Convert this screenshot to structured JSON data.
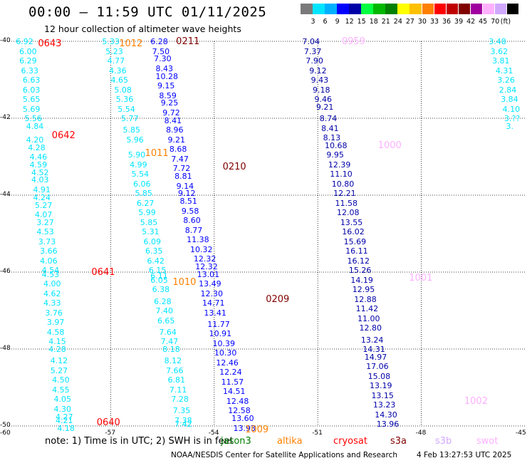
{
  "title": "00:00 — 11:59 UTC 01/11/2025",
  "subtitle": "12 hour collection of altimeter wave heights",
  "legend": {
    "unit": "(ft)",
    "colors": [
      "#7a7a7a",
      "#00e5ff",
      "#00b0ff",
      "#0000ff",
      "#0000a8",
      "#00ff40",
      "#00b800",
      "#008000",
      "#ffff00",
      "#ffc000",
      "#ff8000",
      "#ff0000",
      "#c00000",
      "#800000",
      "#a000a0",
      "#ffb0ff",
      "#d0a8ff",
      "#000000"
    ],
    "labels": [
      "3",
      "6",
      "9",
      "12",
      "15",
      "18",
      "21",
      "24",
      "27",
      "30",
      "33",
      "36",
      "39",
      "42",
      "45",
      "70"
    ]
  },
  "axes": {
    "x_ticks": [
      "-57",
      "-54",
      "-51",
      "-48"
    ],
    "x_left": "-60",
    "x_right": "-45",
    "y_ticks": [
      "-40",
      "-42",
      "-44",
      "-46",
      "-48",
      "-50"
    ]
  },
  "tracks": [
    {
      "color": "#00e5ff",
      "points": [
        [
          "6.92",
          -59.5,
          -40.0
        ],
        [
          "6.00",
          -59.4,
          -40.25
        ],
        [
          "6.29",
          -59.4,
          -40.5
        ],
        [
          "6.33",
          -59.35,
          -40.75
        ],
        [
          "6.63",
          -59.3,
          -41.0
        ],
        [
          "6.03",
          -59.3,
          -41.25
        ],
        [
          "5.65",
          -59.3,
          -41.5
        ],
        [
          "5.69",
          -59.3,
          -41.75
        ],
        [
          "5.56",
          -59.25,
          -42.0
        ],
        [
          "4.84",
          -59.2,
          -42.2
        ],
        [
          "4.20",
          -59.2,
          -42.55
        ],
        [
          "4.28",
          -59.15,
          -42.75
        ],
        [
          "4.46",
          -59.1,
          -43.0
        ],
        [
          "4.59",
          -59.1,
          -43.2
        ],
        [
          "4.52",
          -59.05,
          -43.4
        ],
        [
          "4.03",
          -59.05,
          -43.6
        ],
        [
          "4.91",
          -59.0,
          -43.85
        ],
        [
          "4.24",
          -59.0,
          -44.05
        ],
        [
          "5.27",
          -58.95,
          -44.25
        ],
        [
          "4.07",
          -58.95,
          -44.5
        ],
        [
          "3.27",
          -58.9,
          -44.7
        ],
        [
          "4.53",
          -58.9,
          -44.95
        ],
        [
          "3.73",
          -58.85,
          -45.2
        ],
        [
          "3.66",
          -58.8,
          -45.45
        ],
        [
          "4.06",
          -58.8,
          -45.7
        ],
        [
          "4.54",
          -58.75,
          -45.95
        ],
        [
          "4.53",
          -58.75,
          -46.05
        ],
        [
          "4.00",
          -58.7,
          -46.3
        ],
        [
          "4.62",
          -58.7,
          -46.55
        ],
        [
          "4.33",
          -58.7,
          -46.8
        ],
        [
          "3.76",
          -58.65,
          -47.05
        ],
        [
          "3.97",
          -58.6,
          -47.3
        ],
        [
          "4.58",
          -58.6,
          -47.55
        ],
        [
          "4.15",
          -58.55,
          -47.8
        ],
        [
          "4.28",
          -58.55,
          -48.0
        ],
        [
          "4.12",
          -58.5,
          -48.3
        ],
        [
          "5.27",
          -58.5,
          -48.55
        ],
        [
          "4.50",
          -58.45,
          -48.8
        ],
        [
          "4.55",
          -58.45,
          -49.05
        ],
        [
          "4.05",
          -58.4,
          -49.3
        ],
        [
          "4.30",
          -58.4,
          -49.55
        ],
        [
          "4.27",
          -58.35,
          -49.75
        ],
        [
          "4.21",
          -58.35,
          -49.85
        ],
        [
          "4.18",
          -58.3,
          -50.05
        ]
      ]
    },
    {
      "color": "#00e5ff",
      "points": [
        [
          "5.33",
          -57.0,
          -40.0
        ],
        [
          "5.23",
          -56.9,
          -40.25
        ],
        [
          "4.77",
          -56.85,
          -40.5
        ],
        [
          "4.36",
          -56.8,
          -40.75
        ],
        [
          "4.65",
          -56.75,
          -41.0
        ],
        [
          "5.08",
          -56.65,
          -41.25
        ],
        [
          "5.36",
          -56.6,
          -41.5
        ],
        [
          "5.54",
          -56.55,
          -41.75
        ],
        [
          "5.77",
          -56.45,
          -42.0
        ],
        [
          "5.85",
          -56.4,
          -42.3
        ],
        [
          "5.96",
          -56.3,
          -42.55
        ],
        [
          "5.90",
          -56.25,
          -42.95
        ],
        [
          "4.99",
          -56.2,
          -43.2
        ],
        [
          "5.54",
          -56.15,
          -43.45
        ],
        [
          "6.06",
          -56.1,
          -43.7
        ],
        [
          "5.85",
          -56.05,
          -43.95
        ],
        [
          "6.27",
          -56.0,
          -44.2
        ],
        [
          "5.99",
          -55.95,
          -44.45
        ],
        [
          "5.85",
          -55.9,
          -44.7
        ],
        [
          "5.31",
          -55.85,
          -44.95
        ],
        [
          "6.09",
          -55.8,
          -45.2
        ],
        [
          "6.35",
          -55.75,
          -45.45
        ],
        [
          "6.42",
          -55.7,
          -45.7
        ],
        [
          "6.15",
          -55.65,
          -45.95
        ],
        [
          "6.11",
          -55.6,
          -46.1
        ],
        [
          "6.05",
          -55.6,
          -46.2
        ],
        [
          "6.38",
          -55.55,
          -46.45
        ],
        [
          "6.28",
          -55.5,
          -46.75
        ],
        [
          "7.40",
          -55.45,
          -47.0
        ],
        [
          "6.65",
          -55.4,
          -47.25
        ],
        [
          "7.64",
          -55.35,
          -47.55
        ],
        [
          "7.47",
          -55.3,
          -47.8
        ],
        [
          "8.18",
          -55.25,
          -48.0
        ],
        [
          "8.12",
          -55.2,
          -48.3
        ],
        [
          "7.66",
          -55.15,
          -48.55
        ],
        [
          "6.81",
          -55.1,
          -48.8
        ],
        [
          "7.11",
          -55.05,
          -49.05
        ],
        [
          "7.28",
          -55.0,
          -49.3
        ],
        [
          "7.35",
          -54.95,
          -49.6
        ],
        [
          "7.38",
          -54.9,
          -49.85
        ],
        [
          "7.42",
          -54.9,
          -49.95
        ]
      ]
    },
    {
      "color": "#0000ff",
      "points": [
        [
          "6.28",
          -55.6,
          -40.0
        ],
        [
          "7.50",
          -55.55,
          -40.25
        ],
        [
          "7.30",
          -55.5,
          -40.45
        ],
        [
          "8.43",
          -55.45,
          -40.7
        ],
        [
          "10.28",
          -55.45,
          -40.9
        ],
        [
          "9.15",
          -55.4,
          -41.15
        ],
        [
          "8.59",
          -55.35,
          -41.4
        ],
        [
          "9.25",
          -55.3,
          -41.6
        ],
        [
          "9.72",
          -55.25,
          -41.85
        ],
        [
          "8.41",
          -55.2,
          -42.05
        ],
        [
          "8.96",
          -55.15,
          -42.3
        ],
        [
          "9.21",
          -55.1,
          -42.55
        ],
        [
          "8.68",
          -55.05,
          -42.8
        ],
        [
          "7.47",
          -55.0,
          -43.05
        ],
        [
          "7.72",
          -54.95,
          -43.3
        ],
        [
          "8.81",
          -54.9,
          -43.5
        ],
        [
          "9.14",
          -54.85,
          -43.75
        ],
        [
          "9.12",
          -54.8,
          -43.95
        ],
        [
          "8.51",
          -54.75,
          -44.15
        ],
        [
          "9.58",
          -54.7,
          -44.4
        ],
        [
          "8.60",
          -54.65,
          -44.65
        ],
        [
          "8.77",
          -54.6,
          -44.9
        ],
        [
          "11.38",
          -54.55,
          -45.15
        ],
        [
          "10.32",
          -54.45,
          -45.4
        ],
        [
          "12.32",
          -54.35,
          -45.65
        ],
        [
          "12.32",
          -54.3,
          -45.85
        ],
        [
          "13.01",
          -54.25,
          -46.05
        ],
        [
          "13.49",
          -54.2,
          -46.3
        ],
        [
          "12.30",
          -54.15,
          -46.55
        ],
        [
          "14.71",
          -54.1,
          -46.8
        ],
        [
          "13.41",
          -54.05,
          -47.05
        ],
        [
          "11.77",
          -53.95,
          -47.35
        ],
        [
          "10.91",
          -53.9,
          -47.6
        ],
        [
          "10.39",
          -53.8,
          -47.85
        ],
        [
          "10.30",
          -53.75,
          -48.1
        ],
        [
          "12.46",
          -53.7,
          -48.35
        ],
        [
          "12.24",
          -53.6,
          -48.6
        ],
        [
          "11.57",
          -53.55,
          -48.85
        ],
        [
          "14.51",
          -53.5,
          -49.1
        ],
        [
          "12.48",
          -53.4,
          -49.35
        ],
        [
          "12.58",
          -53.35,
          -49.6
        ],
        [
          "13.60",
          -53.25,
          -49.8
        ],
        [
          "13.93",
          -53.2,
          -50.05
        ]
      ]
    },
    {
      "color": "#0000a8",
      "points": [
        [
          "7.04",
          -51.2,
          -40.0
        ],
        [
          "7.37",
          -51.15,
          -40.25
        ],
        [
          "7.90",
          -51.1,
          -40.5
        ],
        [
          "9.12",
          -51.0,
          -40.75
        ],
        [
          "9.43",
          -50.95,
          -41.0
        ],
        [
          "9.18",
          -50.9,
          -41.25
        ],
        [
          "9.46",
          -50.85,
          -41.5
        ],
        [
          "9.21",
          -50.8,
          -41.7
        ],
        [
          "8.74",
          -50.7,
          -42.0
        ],
        [
          "8.41",
          -50.65,
          -42.25
        ],
        [
          "8.13",
          -50.6,
          -42.5
        ],
        [
          "10.68",
          -50.55,
          -42.7
        ],
        [
          "9.95",
          -50.5,
          -42.95
        ],
        [
          "12.39",
          -50.45,
          -43.2
        ],
        [
          "11.10",
          -50.4,
          -43.45
        ],
        [
          "10.80",
          -50.35,
          -43.7
        ],
        [
          "12.21",
          -50.3,
          -43.95
        ],
        [
          "11.58",
          -50.25,
          -44.2
        ],
        [
          "12.08",
          -50.2,
          -44.45
        ],
        [
          "13.55",
          -50.1,
          -44.7
        ],
        [
          "16.02",
          -50.05,
          -44.95
        ],
        [
          "15.69",
          -50.0,
          -45.2
        ],
        [
          "16.11",
          -49.95,
          -45.45
        ],
        [
          "16.12",
          -49.9,
          -45.7
        ],
        [
          "15.26",
          -49.85,
          -45.95
        ],
        [
          "14.19",
          -49.8,
          -46.2
        ],
        [
          "12.95",
          -49.75,
          -46.45
        ],
        [
          "12.88",
          -49.7,
          -46.7
        ],
        [
          "11.42",
          -49.65,
          -46.95
        ],
        [
          "11.00",
          -49.6,
          -47.2
        ],
        [
          "12.80",
          -49.55,
          -47.45
        ],
        [
          "13.24",
          -49.5,
          -47.75
        ],
        [
          "14.31",
          -49.45,
          -48.0
        ],
        [
          "14.97",
          -49.4,
          -48.2
        ],
        [
          "17.06",
          -49.35,
          -48.45
        ],
        [
          "15.08",
          -49.3,
          -48.7
        ],
        [
          "13.19",
          -49.25,
          -48.95
        ],
        [
          "13.15",
          -49.2,
          -49.2
        ],
        [
          "13.23",
          -49.15,
          -49.45
        ],
        [
          "14.30",
          -49.1,
          -49.7
        ],
        [
          "13.96",
          -49.05,
          -49.95
        ]
      ]
    },
    {
      "color": "#00e5ff",
      "points": [
        [
          "3.48",
          -45.8,
          -40.0
        ],
        [
          "3.62",
          -45.75,
          -40.25
        ],
        [
          "3.81",
          -45.7,
          -40.5
        ],
        [
          "4.31",
          -45.6,
          -40.75
        ],
        [
          "3.26",
          -45.55,
          -41.0
        ],
        [
          "2.84",
          -45.5,
          -41.25
        ],
        [
          "3.84",
          -45.45,
          -41.5
        ],
        [
          "4.10",
          -45.4,
          -41.75
        ],
        [
          "3.??",
          -45.35,
          -42.0
        ],
        [
          "3.",
          -45.3,
          -42.2
        ]
      ]
    }
  ],
  "time_labels": [
    {
      "text": "0643",
      "color": "#ff0000",
      "lon": -58.9,
      "lat": -40.05
    },
    {
      "text": "1012",
      "color": "#ff8000",
      "lon": -56.55,
      "lat": -40.05
    },
    {
      "text": "0211",
      "color": "#800000",
      "lon": -54.9,
      "lat": -40.0
    },
    {
      "text": "0959",
      "color": "#ffb0ff",
      "lon": -50.1,
      "lat": -40.0
    },
    {
      "text": "0642",
      "color": "#ff0000",
      "lon": -58.5,
      "lat": -42.45
    },
    {
      "text": "1011",
      "color": "#ff8000",
      "lon": -55.8,
      "lat": -42.9
    },
    {
      "text": "0210",
      "color": "#800000",
      "lon": -53.55,
      "lat": -43.25
    },
    {
      "text": "1000",
      "color": "#ffb0ff",
      "lon": -49.05,
      "lat": -42.7
    },
    {
      "text": "0641",
      "color": "#ff0000",
      "lon": -57.35,
      "lat": -46.0
    },
    {
      "text": "1010",
      "color": "#ff8000",
      "lon": -55.0,
      "lat": -46.25
    },
    {
      "text": "0209",
      "color": "#800000",
      "lon": -52.3,
      "lat": -46.7
    },
    {
      "text": "1001",
      "color": "#ffb0ff",
      "lon": -48.15,
      "lat": -46.15
    },
    {
      "text": "0640",
      "color": "#ff0000",
      "lon": -57.2,
      "lat": -49.9
    },
    {
      "text": "1009",
      "color": "#ff8000",
      "lon": -52.9,
      "lat": -50.1
    },
    {
      "text": "1002",
      "color": "#ffb0ff",
      "lon": -46.55,
      "lat": -49.35
    }
  ],
  "note": "note:  1) Time is in UTC; 2) SWH is in feet",
  "satellites": [
    {
      "name": "jason3",
      "color": "#008000"
    },
    {
      "name": "altika",
      "color": "#ff8000"
    },
    {
      "name": "cryosat",
      "color": "#ff0000"
    },
    {
      "name": "s3a",
      "color": "#800000"
    },
    {
      "name": "s3b",
      "color": "#d0a8ff"
    },
    {
      "name": "swot",
      "color": "#ffb0ff"
    }
  ],
  "credit": "NOAA/NESDIS Center for Satellite Applications and Research",
  "timestamp": "4 Feb 13:27:53 UTC 2025"
}
